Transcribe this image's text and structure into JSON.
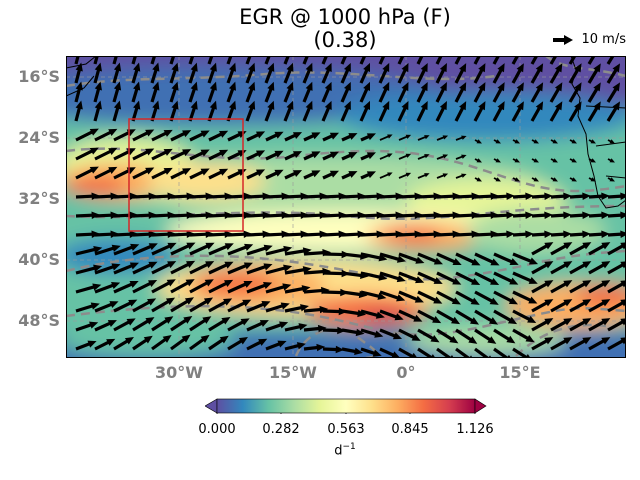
{
  "title": {
    "line1": "EGR @ 1000 hPa (F)",
    "line2": "(0.38)"
  },
  "reference_vector": {
    "label": "10 m/s"
  },
  "axes": {
    "y_ticks": [
      "16°S",
      "24°S",
      "32°S",
      "40°S",
      "48°S"
    ],
    "x_ticks": [
      "30°W",
      "15°W",
      "0°",
      "15°E"
    ]
  },
  "colorbar": {
    "ticks": [
      "0.000",
      "0.282",
      "0.563",
      "0.845",
      "1.126"
    ],
    "unit": "d",
    "unit_exp": "−1",
    "colormap": "Spectral_r",
    "colors": [
      "#5e4fa2",
      "#3288bd",
      "#66c2a5",
      "#abdda4",
      "#e6f598",
      "#ffffbf",
      "#fee08b",
      "#fdae61",
      "#f46d43",
      "#d53e4f",
      "#9e0142"
    ]
  },
  "map": {
    "region_box_color": "#d62728",
    "contour_color": "#8c8c8c",
    "vector_color": "#000000"
  }
}
